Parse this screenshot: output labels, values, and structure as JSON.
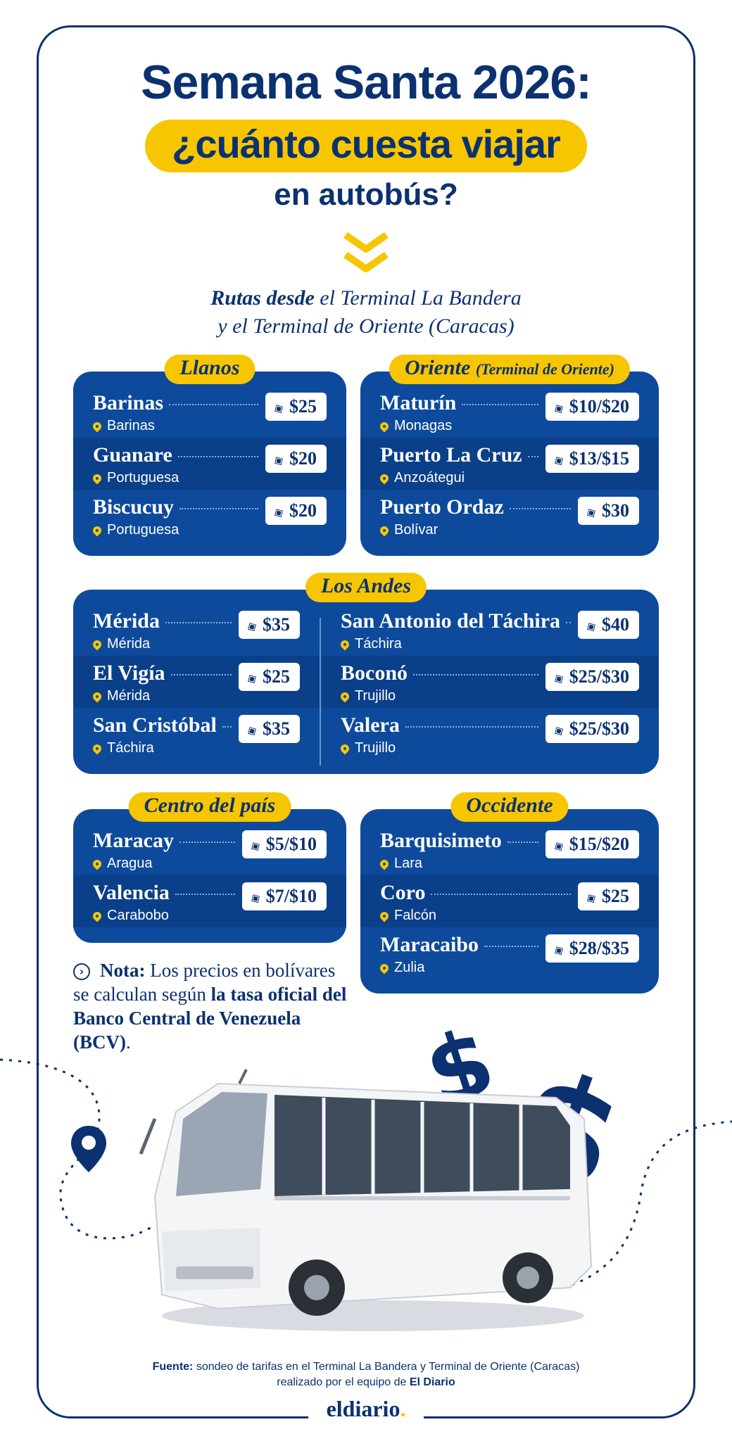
{
  "header": {
    "line1": "Semana Santa 2026:",
    "line2": "¿cuánto cuesta viajar",
    "line3": "en autobús?"
  },
  "subtitle": {
    "bold": "Rutas desde",
    "rest1": " el Terminal La Bandera",
    "line2": "y el Terminal de Oriente (Caracas)"
  },
  "regions": {
    "llanos": {
      "title": "Llanos",
      "routes": [
        {
          "city": "Barinas",
          "state": "Barinas",
          "price": "$25"
        },
        {
          "city": "Guanare",
          "state": "Portuguesa",
          "price": "$20"
        },
        {
          "city": "Biscucuy",
          "state": "Portuguesa",
          "price": "$20"
        }
      ]
    },
    "oriente": {
      "title": "Oriente",
      "subtitle": "(Terminal de Oriente)",
      "routes": [
        {
          "city": "Maturín",
          "state": "Monagas",
          "price": "$10/$20"
        },
        {
          "city": "Puerto La Cruz",
          "state": "Anzoátegui",
          "price": "$13/$15"
        },
        {
          "city": "Puerto Ordaz",
          "state": "Bolívar",
          "price": "$30"
        }
      ]
    },
    "andes": {
      "title": "Los Andes",
      "left": [
        {
          "city": "Mérida",
          "state": "Mérida",
          "price": "$35"
        },
        {
          "city": "El Vigía",
          "state": "Mérida",
          "price": "$25"
        },
        {
          "city": "San Cristóbal",
          "state": "Táchira",
          "price": "$35"
        }
      ],
      "right": [
        {
          "city": "San Antonio del Táchira",
          "state": "Táchira",
          "price": "$40"
        },
        {
          "city": "Boconó",
          "state": "Trujillo",
          "price": "$25/$30"
        },
        {
          "city": "Valera",
          "state": "Trujillo",
          "price": "$25/$30"
        }
      ]
    },
    "centro": {
      "title": "Centro del país",
      "routes": [
        {
          "city": "Maracay",
          "state": "Aragua",
          "price": "$5/$10"
        },
        {
          "city": "Valencia",
          "state": "Carabobo",
          "price": "$7/$10"
        }
      ]
    },
    "occidente": {
      "title": "Occidente",
      "routes": [
        {
          "city": "Barquisimeto",
          "state": "Lara",
          "price": "$15/$20"
        },
        {
          "city": "Coro",
          "state": "Falcón",
          "price": "$25"
        },
        {
          "city": "Maracaibo",
          "state": "Zulia",
          "price": "$28/$35"
        }
      ]
    }
  },
  "note": {
    "label": "Nota:",
    "text": " Los precios en bolívares se calculan según ",
    "bold": "la tasa oficial del Banco Central de Venezuela (BCV)",
    "end": "."
  },
  "decor": {
    "dollar": "$"
  },
  "source": {
    "label": "Fuente:",
    "text": " sondeo de tarifas en el Terminal La Bandera y Terminal de Oriente (Caracas) realizado por el equipo de ",
    "bold": "El Diario"
  },
  "brand": {
    "name": "eldiario",
    "dot": "."
  },
  "colors": {
    "navy": "#0b3170",
    "blue": "#0d4a9c",
    "yellow": "#f7c600"
  },
  "icons": [
    "chevrons-down-icon",
    "price-tag-icon",
    "location-pin-icon",
    "chevron-right-circle-icon",
    "dollar-sign-icon",
    "bus-image"
  ]
}
